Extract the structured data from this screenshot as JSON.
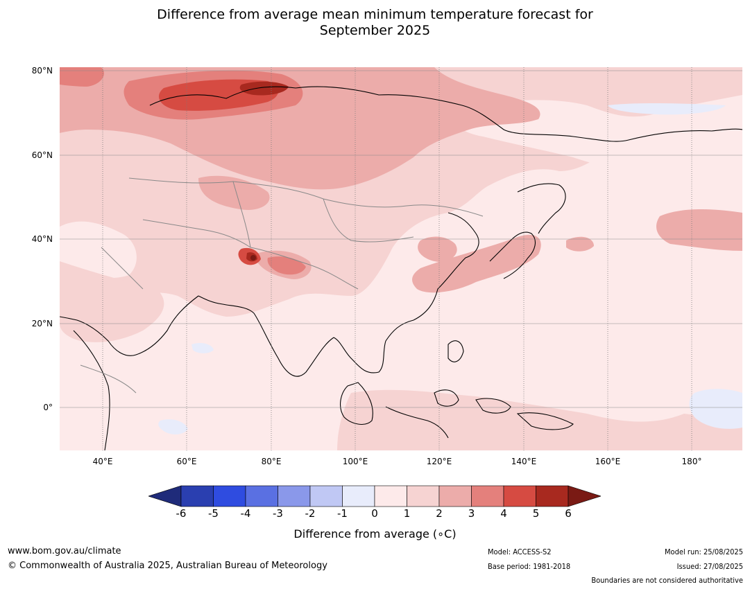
{
  "title": {
    "line1": "Difference from average mean minimum temperature forecast for",
    "line2": "September 2025"
  },
  "axes": {
    "y_ticks": [
      "80°N",
      "60°N",
      "40°N",
      "20°N",
      "0°"
    ],
    "x_ticks": [
      "40°E",
      "60°E",
      "80°E",
      "100°E",
      "120°E",
      "140°E",
      "160°E",
      "180°"
    ]
  },
  "colorbar": {
    "title": "Difference from average (∘C)",
    "labels": [
      "-6",
      "-5",
      "-4",
      "-3",
      "-2",
      "-1",
      "0",
      "1",
      "2",
      "3",
      "4",
      "5",
      "6"
    ],
    "colors": [
      "#1f2b7a",
      "#2a3fb0",
      "#2f4ce0",
      "#5a70e2",
      "#8a98ea",
      "#c0c8f4",
      "#e8ecfb",
      "#fdeaea",
      "#f6d3d2",
      "#ecacaa",
      "#e4807c",
      "#d64b42",
      "#a8291f",
      "#7a1a14"
    ]
  },
  "footer": {
    "website": "www.bom.gov.au/climate",
    "copyright": "© Commonwealth of Australia 2025, Australian Bureau of Meteorology",
    "model": "Model: ACCESS-S2",
    "base_period": "Base period: 1981-2018",
    "model_run": "Model run: 25/08/2025",
    "issued": "Issued: 27/08/2025",
    "disclaimer": "Boundaries are not considered authoritative"
  }
}
